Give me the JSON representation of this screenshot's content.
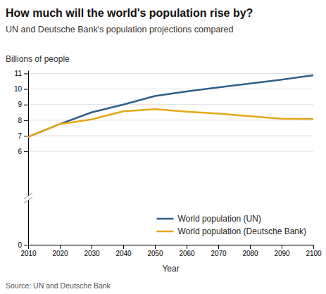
{
  "chart_data": {
    "type": "line",
    "title": "How much will the world's population rise by?",
    "subtitle": "UN and Deutsche Bank's population projections compared",
    "source": "Source: UN and Deutsche Bank",
    "xlabel": "Year",
    "ylabel": "Billions of people",
    "x": [
      2010,
      2020,
      2030,
      2040,
      2050,
      2060,
      2070,
      2080,
      2090,
      2100
    ],
    "series": [
      {
        "name": "World population (UN)",
        "color": "#2e5f8a",
        "values": [
          6.93,
          7.75,
          8.5,
          9.0,
          9.55,
          9.85,
          10.1,
          10.35,
          10.6,
          10.88
        ]
      },
      {
        "name": "World population (Deutsche Bank)",
        "color": "#e6a817",
        "values": [
          6.93,
          7.75,
          8.05,
          8.57,
          8.7,
          8.55,
          8.42,
          8.25,
          8.1,
          8.07
        ]
      }
    ],
    "xlim": [
      2010,
      2100
    ],
    "xticks": [
      2010,
      2020,
      2030,
      2040,
      2050,
      2060,
      2070,
      2080,
      2090,
      2100
    ],
    "ylim": [
      0,
      11.2
    ],
    "yticks": [
      0,
      6,
      7,
      8,
      9,
      10,
      11
    ],
    "grid": "y",
    "legend": "lower right"
  }
}
